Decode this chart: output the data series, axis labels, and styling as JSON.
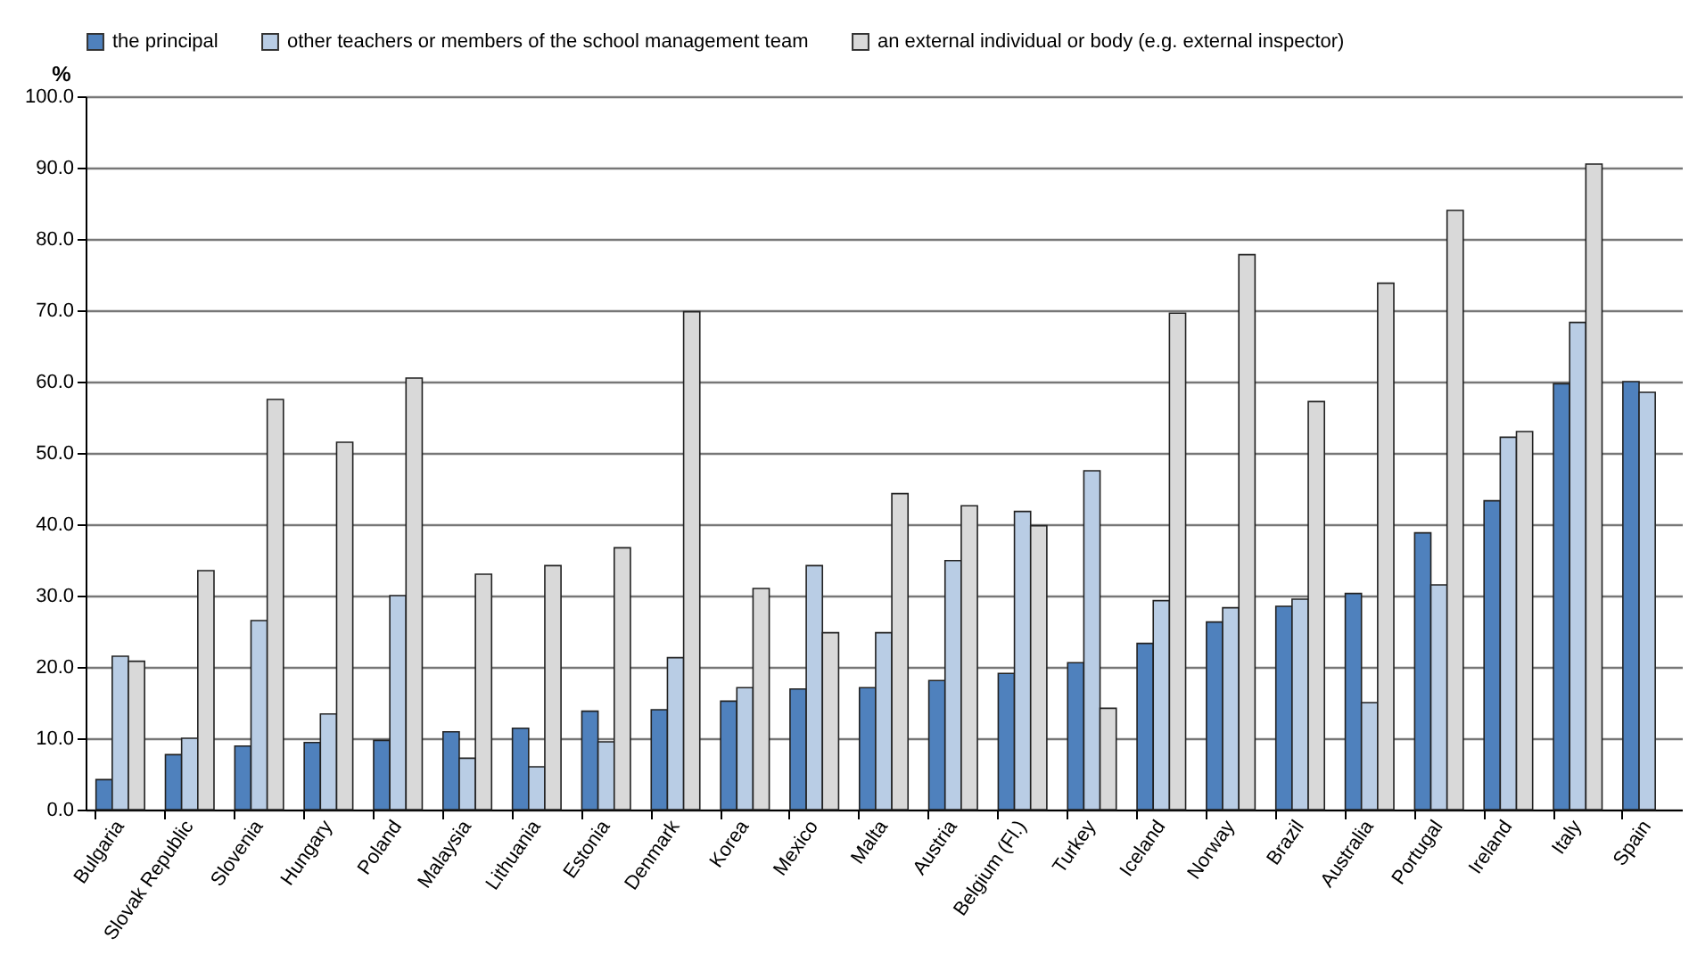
{
  "chart_data": {
    "type": "bar",
    "ylabel": "%",
    "categories": [
      "Bulgaria",
      "Slovak Republic",
      "Slovenia",
      "Hungary",
      "Poland",
      "Malaysia",
      "Lithuania",
      "Estonia",
      "Denmark",
      "Korea",
      "Mexico",
      "Malta",
      "Austria",
      "Belgium (Fl.)",
      "Turkey",
      "Iceland",
      "Norway",
      "Brazil",
      "Australia",
      "Portugal",
      "Ireland",
      "Italy",
      "Spain"
    ],
    "series": [
      {
        "name": "the principal",
        "color": "#4f81bd",
        "values": [
          4.2,
          7.7,
          8.9,
          9.4,
          9.7,
          10.9,
          11.4,
          13.8,
          14.0,
          15.2,
          16.9,
          17.1,
          18.1,
          19.1,
          20.6,
          23.3,
          26.3,
          28.5,
          30.3,
          38.8,
          43.3,
          59.7,
          60.0
        ]
      },
      {
        "name": "other teachers or members of the school management team",
        "color": "#b9cde5",
        "values": [
          21.5,
          10.0,
          26.5,
          13.4,
          30.0,
          7.2,
          6.0,
          9.5,
          21.3,
          17.1,
          34.2,
          24.8,
          34.9,
          41.8,
          47.5,
          29.3,
          28.3,
          29.5,
          15.0,
          31.5,
          52.2,
          68.3,
          58.5
        ]
      },
      {
        "name": "an external individual or body (e.g. external inspector)",
        "color": "#d9d9d9",
        "values": [
          20.8,
          33.5,
          57.5,
          51.5,
          60.5,
          33.0,
          34.2,
          36.7,
          69.8,
          31.0,
          24.8,
          44.3,
          42.6,
          39.8,
          14.2,
          69.6,
          77.8,
          57.2,
          73.8,
          84.0,
          53.0,
          90.5,
          null
        ]
      }
    ],
    "ylim": [
      0,
      100
    ],
    "yticks": [
      {
        "value": 0,
        "label": "0.0"
      },
      {
        "value": 10,
        "label": "10.0"
      },
      {
        "value": 20,
        "label": "20.0"
      },
      {
        "value": 30,
        "label": "30.0"
      },
      {
        "value": 40,
        "label": "40.0"
      },
      {
        "value": 50,
        "label": "50.0"
      },
      {
        "value": 60,
        "label": "60.0"
      },
      {
        "value": 70,
        "label": "70.0"
      },
      {
        "value": 80,
        "label": "80.0"
      },
      {
        "value": 90,
        "label": "90.0"
      },
      {
        "value": 100,
        "label": "100.0"
      }
    ],
    "grid": "y",
    "legend": "top"
  }
}
